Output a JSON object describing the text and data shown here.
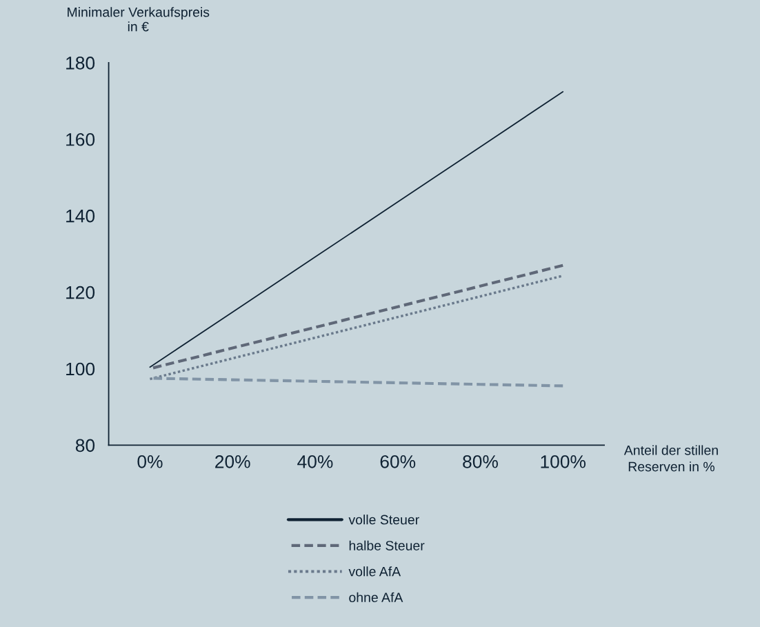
{
  "chart_data": {
    "type": "line",
    "ylabel": "Minimaler Verkaufspreis\nin €",
    "xlabel": "Anteil der stillen\nReserven in %",
    "categories": [
      "0%",
      "20%",
      "40%",
      "60%",
      "80%",
      "100%"
    ],
    "ylim": [
      80,
      180
    ],
    "yticks": [
      80,
      100,
      120,
      140,
      160,
      180
    ],
    "grid": false,
    "legend": "bottom",
    "marker": "none",
    "series": [
      {
        "name": "volle Steuer",
        "color": "#0f2233",
        "line_style": "solid",
        "values": [
          100.4,
          114.8,
          129.2,
          143.6,
          158.0,
          172.4
        ]
      },
      {
        "name": "halbe Steuer",
        "color": "#5f6878",
        "line_style": "dashed",
        "values": [
          100.0,
          105.4,
          110.8,
          116.2,
          121.6,
          127.0
        ]
      },
      {
        "name": "volle AfA",
        "color": "#6a7a8c",
        "line_style": "dotted",
        "values": [
          97.3,
          102.7,
          108.1,
          113.5,
          118.9,
          124.3
        ]
      },
      {
        "name": "ohne AfA",
        "color": "#8194a6",
        "line_style": "dashed",
        "values": [
          97.5,
          97.1,
          96.7,
          96.3,
          95.9,
          95.5
        ]
      }
    ]
  }
}
